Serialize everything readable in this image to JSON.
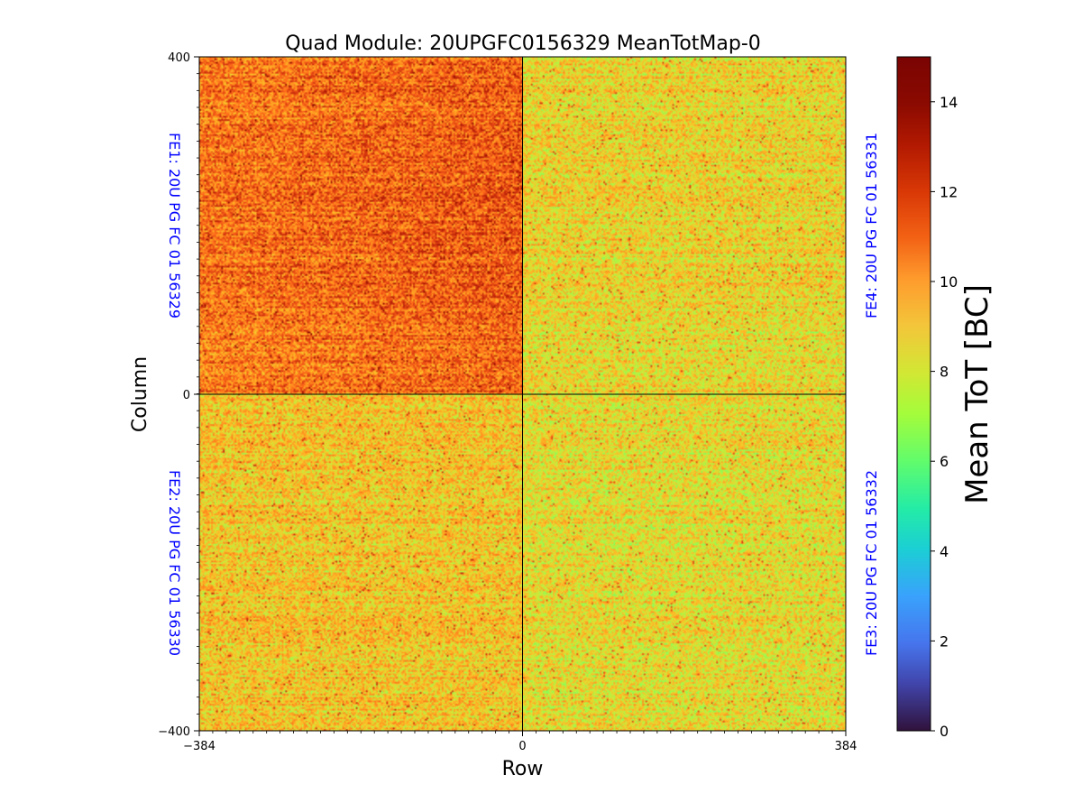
{
  "chart_data": {
    "type": "heatmap",
    "title": "Quad Module: 20UPGFC0156329 MeanTotMap-0",
    "xlabel": "Row",
    "ylabel": "Column",
    "xlim": [
      -384,
      384
    ],
    "ylim": [
      -400,
      400
    ],
    "x_ticks": [
      -384,
      0,
      384
    ],
    "y_ticks": [
      -400,
      0,
      400
    ],
    "x_tick_labels": [
      "−384",
      "0",
      "384"
    ],
    "y_tick_labels": [
      "−400",
      "0",
      "400"
    ],
    "colorbar": {
      "label": "Mean ToT [BC]",
      "range": [
        0,
        15
      ],
      "ticks": [
        0,
        2,
        4,
        6,
        8,
        10,
        12,
        14
      ],
      "colormap": "turbo"
    },
    "quadrants": [
      {
        "position": "top-left",
        "label": "FE1: 20U PG FC 01 56329",
        "mean_tot": 11.5,
        "label_color": "#0000ff"
      },
      {
        "position": "bottom-left",
        "label": "FE2: 20U PG FC 01 56330",
        "mean_tot": 9.7,
        "label_color": "#0000ff"
      },
      {
        "position": "bottom-right",
        "label": "FE3: 20U PG FC 01 56332",
        "mean_tot": 9.1,
        "label_color": "#0000ff"
      },
      {
        "position": "top-right",
        "label": "FE4: 20U PG FC 01 56331",
        "mean_tot": 9.3,
        "label_color": "#0000ff"
      }
    ],
    "grid": false,
    "divider_lines": [
      {
        "axis": "x",
        "value": 0
      },
      {
        "axis": "y",
        "value": 0
      }
    ]
  }
}
